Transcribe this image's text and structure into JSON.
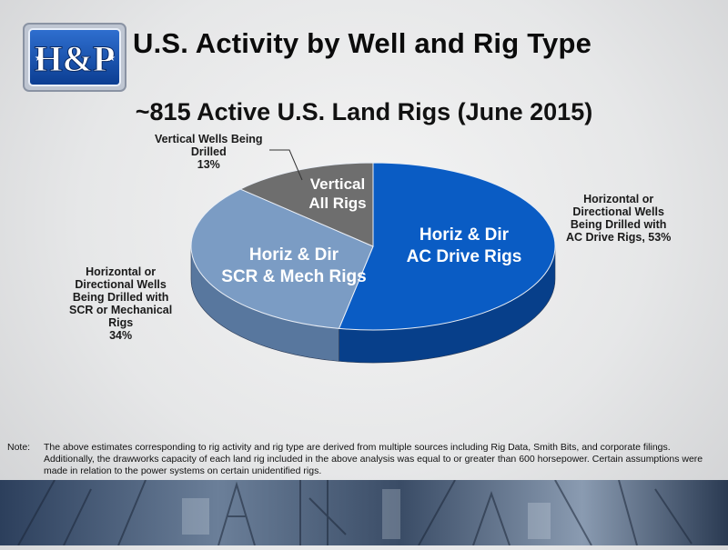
{
  "header": {
    "title": "U.S. Activity by Well and Rig Type",
    "logo_text": "H&P"
  },
  "chart_data": {
    "type": "pie",
    "title": "~815 Active U.S. Land Rigs (June 2015)",
    "slices": [
      {
        "label": "Horiz & Dir AC Drive Rigs",
        "label_lines": [
          "Horiz & Dir",
          "AC Drive Rigs"
        ],
        "callout_lines": [
          "Horizontal or",
          "Directional Wells",
          "Being Drilled with",
          "AC Drive Rigs, 53%"
        ],
        "value": 53,
        "color": "#0a5cc4",
        "side_color": "#073f8a"
      },
      {
        "label": "Horiz & Dir SCR & Mech Rigs",
        "label_lines": [
          "Horiz & Dir",
          "SCR & Mech Rigs"
        ],
        "callout_lines": [
          "Horizontal or",
          "Directional Wells",
          "Being Drilled with",
          "SCR or Mechanical",
          "Rigs",
          "34%"
        ],
        "value": 34,
        "color": "#7b9cc4",
        "side_color": "#58779e"
      },
      {
        "label": "Vertical All Rigs",
        "label_lines": [
          "Vertical",
          "All Rigs"
        ],
        "callout_lines": [
          "Vertical Wells Being",
          "Drilled",
          "13%"
        ],
        "value": 13,
        "color": "#6e6e6e",
        "side_color": "#4a4a4a"
      }
    ]
  },
  "note": {
    "label": "Note:",
    "text": "The above estimates corresponding to rig activity and rig type are derived from multiple sources including Rig Data, Smith Bits, and corporate filings. Additionally, the drawworks capacity of each land rig included in the above analysis was equal to or greater than 600 horsepower. Certain assumptions were made in relation to the power systems on certain unidentified rigs."
  }
}
